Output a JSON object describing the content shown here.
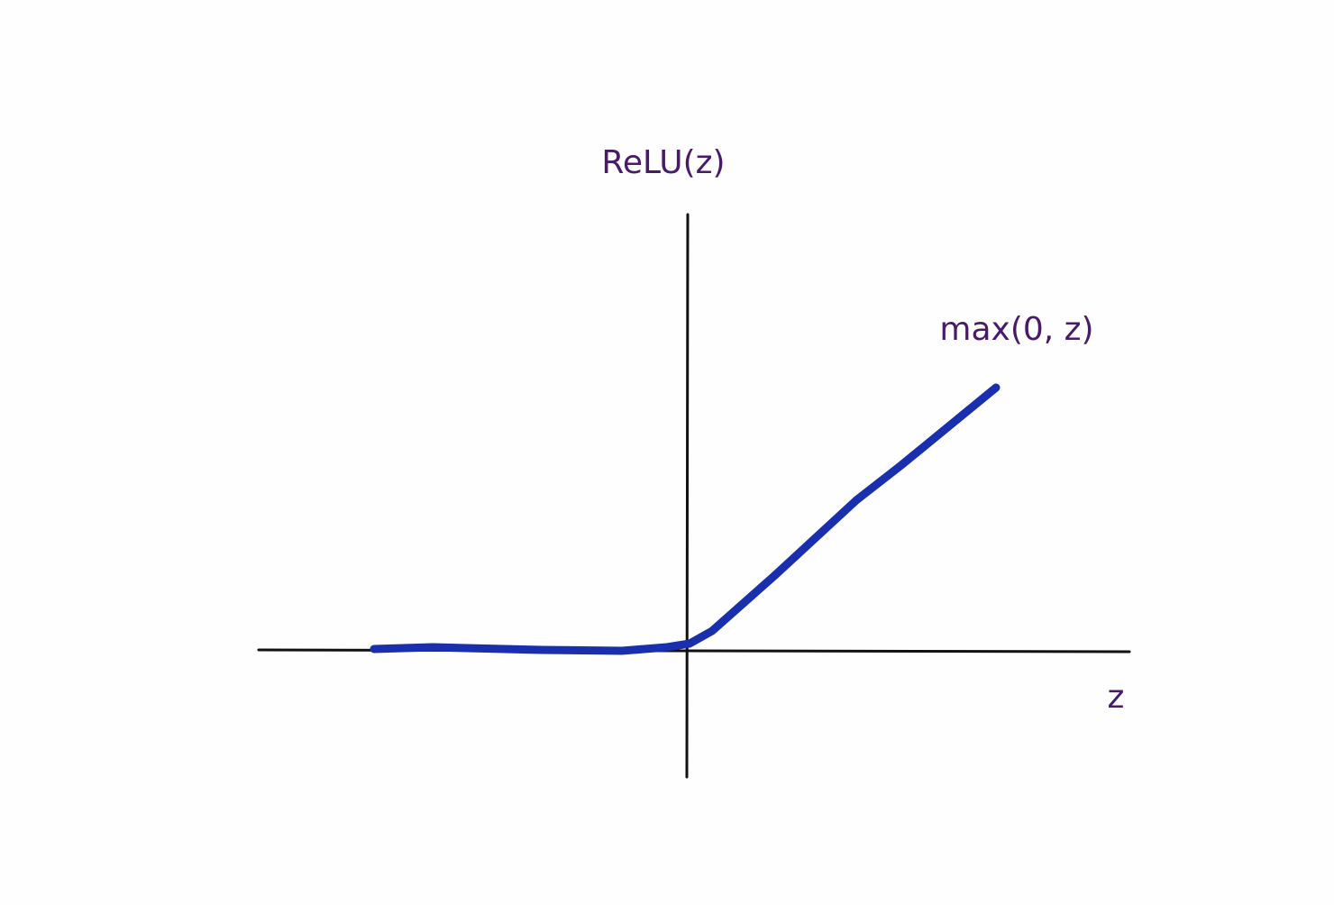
{
  "axes": {
    "y_label": "ReLU(z)",
    "x_label": "z"
  },
  "curve": {
    "label": "max(0, z)"
  }
}
